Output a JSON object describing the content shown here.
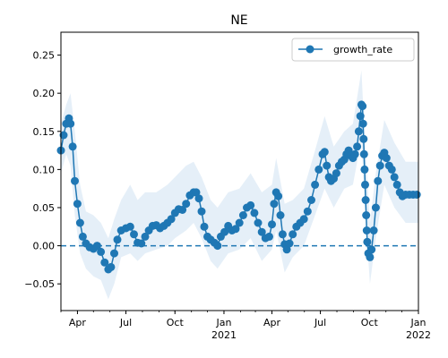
{
  "chart_data": {
    "type": "line",
    "title": "NE",
    "xlabel": "",
    "ylabel": "",
    "x_tick_labels": [
      {
        "date": "2020-04-01",
        "label": "Apr",
        "sub": ""
      },
      {
        "date": "2020-07-01",
        "label": "Jul",
        "sub": ""
      },
      {
        "date": "2020-10-01",
        "label": "Oct",
        "sub": ""
      },
      {
        "date": "2021-01-01",
        "label": "Jan",
        "sub": "2021"
      },
      {
        "date": "2021-04-01",
        "label": "Apr",
        "sub": ""
      },
      {
        "date": "2021-07-01",
        "label": "Jul",
        "sub": ""
      },
      {
        "date": "2021-10-01",
        "label": "Oct",
        "sub": ""
      },
      {
        "date": "2022-01-01",
        "label": "Jan",
        "sub": "2022"
      }
    ],
    "y_ticks": [
      -0.05,
      0.0,
      0.05,
      0.1,
      0.15,
      0.2,
      0.25
    ],
    "y_tick_labels": [
      "−0.05",
      "0.00",
      "0.05",
      "0.10",
      "0.15",
      "0.20",
      "0.25"
    ],
    "xlim": [
      "2020-03-01",
      "2022-01-01"
    ],
    "ylim": [
      -0.085,
      0.28
    ],
    "grid": false,
    "legend_position": "top-right",
    "reference_line": {
      "y": 0,
      "style": "dashed",
      "color": "#1f77b4"
    },
    "colors": {
      "series": "#1f77b4",
      "band": "#c6dbef"
    },
    "series": [
      {
        "name": "growth_rate",
        "marker": "circle",
        "points": [
          [
            "2020-03-01",
            0.125
          ],
          [
            "2020-03-06",
            0.145
          ],
          [
            "2020-03-11",
            0.16
          ],
          [
            "2020-03-16",
            0.167
          ],
          [
            "2020-03-19",
            0.16
          ],
          [
            "2020-03-23",
            0.13
          ],
          [
            "2020-03-27",
            0.085
          ],
          [
            "2020-04-01",
            0.055
          ],
          [
            "2020-04-06",
            0.03
          ],
          [
            "2020-04-11",
            0.012
          ],
          [
            "2020-04-17",
            0.003
          ],
          [
            "2020-04-24",
            -0.002
          ],
          [
            "2020-05-01",
            -0.004
          ],
          [
            "2020-05-08",
            0.0
          ],
          [
            "2020-05-15",
            -0.008
          ],
          [
            "2020-05-22",
            -0.022
          ],
          [
            "2020-05-29",
            -0.031
          ],
          [
            "2020-06-03",
            -0.028
          ],
          [
            "2020-06-09",
            -0.01
          ],
          [
            "2020-06-15",
            0.008
          ],
          [
            "2020-06-22",
            0.02
          ],
          [
            "2020-07-01",
            0.023
          ],
          [
            "2020-07-09",
            0.025
          ],
          [
            "2020-07-16",
            0.015
          ],
          [
            "2020-07-23",
            0.004
          ],
          [
            "2020-07-30",
            0.003
          ],
          [
            "2020-08-06",
            0.012
          ],
          [
            "2020-08-13",
            0.02
          ],
          [
            "2020-08-20",
            0.026
          ],
          [
            "2020-08-27",
            0.027
          ],
          [
            "2020-09-03",
            0.023
          ],
          [
            "2020-09-10",
            0.026
          ],
          [
            "2020-09-17",
            0.03
          ],
          [
            "2020-09-24",
            0.035
          ],
          [
            "2020-10-01",
            0.043
          ],
          [
            "2020-10-08",
            0.048
          ],
          [
            "2020-10-15",
            0.047
          ],
          [
            "2020-10-22",
            0.055
          ],
          [
            "2020-10-29",
            0.066
          ],
          [
            "2020-11-05",
            0.07
          ],
          [
            "2020-11-10",
            0.07
          ],
          [
            "2020-11-15",
            0.062
          ],
          [
            "2020-11-20",
            0.045
          ],
          [
            "2020-11-25",
            0.025
          ],
          [
            "2020-12-01",
            0.012
          ],
          [
            "2020-12-07",
            0.008
          ],
          [
            "2020-12-14",
            0.004
          ],
          [
            "2020-12-20",
            0.0
          ],
          [
            "2020-12-26",
            0.012
          ],
          [
            "2021-01-02",
            0.018
          ],
          [
            "2021-01-09",
            0.026
          ],
          [
            "2021-01-16",
            0.02
          ],
          [
            "2021-01-23",
            0.022
          ],
          [
            "2021-01-30",
            0.03
          ],
          [
            "2021-02-06",
            0.04
          ],
          [
            "2021-02-13",
            0.05
          ],
          [
            "2021-02-20",
            0.053
          ],
          [
            "2021-02-27",
            0.043
          ],
          [
            "2021-03-06",
            0.03
          ],
          [
            "2021-03-13",
            0.018
          ],
          [
            "2021-03-20",
            0.01
          ],
          [
            "2021-03-27",
            0.012
          ],
          [
            "2021-04-01",
            0.028
          ],
          [
            "2021-04-05",
            0.055
          ],
          [
            "2021-04-09",
            0.07
          ],
          [
            "2021-04-13",
            0.065
          ],
          [
            "2021-04-17",
            0.04
          ],
          [
            "2021-04-21",
            0.015
          ],
          [
            "2021-04-25",
            0.002
          ],
          [
            "2021-04-29",
            -0.005
          ],
          [
            "2021-05-04",
            0.003
          ],
          [
            "2021-05-10",
            0.015
          ],
          [
            "2021-05-17",
            0.025
          ],
          [
            "2021-05-24",
            0.03
          ],
          [
            "2021-05-31",
            0.035
          ],
          [
            "2021-06-07",
            0.045
          ],
          [
            "2021-06-14",
            0.06
          ],
          [
            "2021-06-21",
            0.08
          ],
          [
            "2021-06-28",
            0.1
          ],
          [
            "2021-07-05",
            0.12
          ],
          [
            "2021-07-09",
            0.123
          ],
          [
            "2021-07-13",
            0.105
          ],
          [
            "2021-07-17",
            0.09
          ],
          [
            "2021-07-21",
            0.085
          ],
          [
            "2021-07-26",
            0.088
          ],
          [
            "2021-07-31",
            0.095
          ],
          [
            "2021-08-05",
            0.105
          ],
          [
            "2021-08-10",
            0.11
          ],
          [
            "2021-08-15",
            0.113
          ],
          [
            "2021-08-19",
            0.12
          ],
          [
            "2021-08-23",
            0.125
          ],
          [
            "2021-08-27",
            0.118
          ],
          [
            "2021-08-31",
            0.115
          ],
          [
            "2021-09-04",
            0.12
          ],
          [
            "2021-09-08",
            0.13
          ],
          [
            "2021-09-11",
            0.15
          ],
          [
            "2021-09-14",
            0.17
          ],
          [
            "2021-09-16",
            0.185
          ],
          [
            "2021-09-18",
            0.183
          ],
          [
            "2021-09-19",
            0.16
          ],
          [
            "2021-09-20",
            0.14
          ],
          [
            "2021-09-21",
            0.12
          ],
          [
            "2021-09-22",
            0.1
          ],
          [
            "2021-09-23",
            0.08
          ],
          [
            "2021-09-24",
            0.06
          ],
          [
            "2021-09-25",
            0.04
          ],
          [
            "2021-09-26",
            0.02
          ],
          [
            "2021-09-27",
            0.005
          ],
          [
            "2021-09-29",
            -0.01
          ],
          [
            "2021-10-02",
            -0.015
          ],
          [
            "2021-10-05",
            -0.005
          ],
          [
            "2021-10-09",
            0.02
          ],
          [
            "2021-10-13",
            0.05
          ],
          [
            "2021-10-17",
            0.085
          ],
          [
            "2021-10-21",
            0.105
          ],
          [
            "2021-10-25",
            0.118
          ],
          [
            "2021-10-29",
            0.122
          ],
          [
            "2021-11-02",
            0.115
          ],
          [
            "2021-11-07",
            0.105
          ],
          [
            "2021-11-12",
            0.1
          ],
          [
            "2021-11-17",
            0.09
          ],
          [
            "2021-11-22",
            0.08
          ],
          [
            "2021-11-27",
            0.07
          ],
          [
            "2021-12-02",
            0.065
          ],
          [
            "2021-12-08",
            0.067
          ],
          [
            "2021-12-15",
            0.067
          ],
          [
            "2021-12-22",
            0.067
          ],
          [
            "2021-12-29",
            0.067
          ]
        ]
      }
    ],
    "confidence_band": {
      "points": [
        [
          "2020-03-01",
          0.095,
          0.16
        ],
        [
          "2020-03-11",
          0.12,
          0.185
        ],
        [
          "2020-03-19",
          0.105,
          0.2
        ],
        [
          "2020-03-27",
          0.04,
          0.15
        ],
        [
          "2020-04-06",
          -0.01,
          0.08
        ],
        [
          "2020-04-17",
          -0.03,
          0.045
        ],
        [
          "2020-05-01",
          -0.04,
          0.04
        ],
        [
          "2020-05-15",
          -0.045,
          0.03
        ],
        [
          "2020-05-29",
          -0.07,
          0.01
        ],
        [
          "2020-06-09",
          -0.05,
          0.035
        ],
        [
          "2020-06-22",
          -0.015,
          0.06
        ],
        [
          "2020-07-09",
          -0.01,
          0.08
        ],
        [
          "2020-07-23",
          -0.02,
          0.06
        ],
        [
          "2020-08-06",
          -0.01,
          0.07
        ],
        [
          "2020-08-27",
          -0.005,
          0.07
        ],
        [
          "2020-09-17",
          0.0,
          0.08
        ],
        [
          "2020-10-01",
          0.01,
          0.09
        ],
        [
          "2020-10-22",
          0.02,
          0.105
        ],
        [
          "2020-11-05",
          0.03,
          0.11
        ],
        [
          "2020-11-20",
          0.01,
          0.09
        ],
        [
          "2020-12-07",
          -0.02,
          0.06
        ],
        [
          "2020-12-20",
          -0.03,
          0.05
        ],
        [
          "2021-01-09",
          -0.01,
          0.07
        ],
        [
          "2021-01-30",
          -0.005,
          0.075
        ],
        [
          "2021-02-20",
          0.01,
          0.095
        ],
        [
          "2021-03-13",
          -0.02,
          0.07
        ],
        [
          "2021-04-01",
          -0.005,
          0.08
        ],
        [
          "2021-04-09",
          0.02,
          0.115
        ],
        [
          "2021-04-25",
          -0.035,
          0.055
        ],
        [
          "2021-05-10",
          -0.015,
          0.06
        ],
        [
          "2021-05-31",
          0.0,
          0.075
        ],
        [
          "2021-06-21",
          0.04,
          0.125
        ],
        [
          "2021-07-09",
          0.075,
          0.17
        ],
        [
          "2021-07-26",
          0.05,
          0.13
        ],
        [
          "2021-08-15",
          0.075,
          0.15
        ],
        [
          "2021-08-31",
          0.08,
          0.16
        ],
        [
          "2021-09-16",
          0.14,
          0.23
        ],
        [
          "2021-09-22",
          0.055,
          0.145
        ],
        [
          "2021-10-02",
          -0.05,
          0.03
        ],
        [
          "2021-10-13",
          0.01,
          0.095
        ],
        [
          "2021-10-29",
          0.08,
          0.165
        ],
        [
          "2021-11-17",
          0.05,
          0.135
        ],
        [
          "2021-12-08",
          0.03,
          0.11
        ],
        [
          "2021-12-31",
          0.03,
          0.11
        ]
      ]
    }
  }
}
